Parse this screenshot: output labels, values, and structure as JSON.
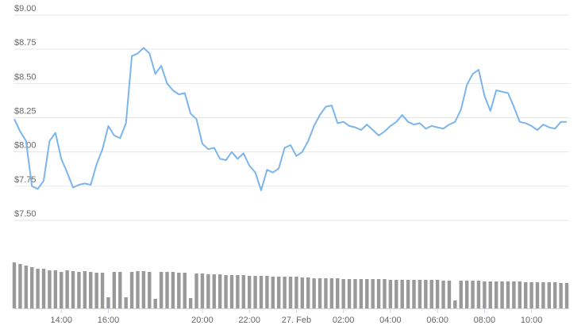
{
  "chart_data": {
    "type": "line",
    "x": [
      12,
      12.25,
      12.5,
      12.75,
      13,
      13.25,
      13.5,
      13.75,
      14,
      14.25,
      14.5,
      14.75,
      15,
      15.25,
      15.5,
      15.75,
      16,
      16.25,
      16.5,
      16.75,
      17,
      17.25,
      17.5,
      17.75,
      18,
      18.25,
      18.5,
      18.75,
      19,
      19.25,
      19.5,
      19.75,
      20,
      20.25,
      20.5,
      20.75,
      21,
      21.25,
      21.5,
      21.75,
      22,
      22.25,
      22.5,
      22.75,
      23,
      23.25,
      23.5,
      23.75,
      24,
      24.25,
      24.5,
      24.75,
      25,
      25.25,
      25.5,
      25.75,
      26,
      26.25,
      26.5,
      26.75,
      27,
      27.25,
      27.5,
      27.75,
      28,
      28.25,
      28.5,
      28.75,
      29,
      29.25,
      29.5,
      29.75,
      30,
      30.25,
      30.5,
      30.75,
      31,
      31.25,
      31.5,
      31.75,
      32,
      32.25,
      32.5,
      32.75,
      33,
      33.25,
      33.5,
      33.75,
      34,
      34.25,
      34.5,
      34.75,
      35,
      35.25,
      35.5
    ],
    "series": [
      {
        "color": "#7cb5ec",
        "values": [
          8.24,
          8.15,
          8.08,
          7.75,
          7.73,
          7.79,
          8.08,
          8.14,
          7.95,
          7.85,
          7.74,
          7.76,
          7.77,
          7.76,
          7.91,
          8.02,
          8.19,
          8.12,
          8.1,
          8.21,
          8.7,
          8.72,
          8.76,
          8.72,
          8.57,
          8.63,
          8.5,
          8.45,
          8.42,
          8.43,
          8.28,
          8.24,
          8.06,
          8.02,
          8.03,
          7.95,
          7.94,
          8.0,
          7.95,
          7.99,
          7.9,
          7.85,
          7.72,
          7.87,
          7.85,
          7.88,
          8.03,
          8.05,
          7.97,
          8.0,
          8.08,
          8.19,
          8.27,
          8.33,
          8.34,
          8.21,
          8.22,
          8.19,
          8.18,
          8.16,
          8.2,
          8.16,
          8.12,
          8.15,
          8.19,
          8.22,
          8.27,
          8.22,
          8.2,
          8.21,
          8.17,
          8.19,
          8.18,
          8.17,
          8.2,
          8.22,
          8.31,
          8.49,
          8.57,
          8.6,
          8.41,
          8.3,
          8.45,
          8.44,
          8.43,
          8.33,
          8.22,
          8.21,
          8.19,
          8.16,
          8.2,
          8.18,
          8.17,
          8.22,
          8.22
        ]
      },
      {
        "type": "bar",
        "axis": "y2",
        "color": "#999999",
        "values": [
          58,
          56,
          54,
          52,
          50,
          50,
          48,
          48,
          46,
          48,
          47,
          46,
          47,
          46,
          45,
          45,
          14,
          46,
          46,
          14,
          46,
          47,
          47,
          46,
          12,
          46,
          46,
          46,
          45,
          45,
          13,
          44,
          44,
          43,
          43,
          43,
          42,
          42,
          42,
          42,
          41,
          41,
          41,
          41,
          40,
          40,
          40,
          40,
          40,
          39,
          39,
          38,
          38,
          38,
          38,
          38,
          37,
          37,
          37,
          37,
          37,
          37,
          37,
          37,
          36,
          36,
          36,
          36,
          36,
          36,
          36,
          36,
          36,
          35,
          35,
          10,
          35,
          35,
          35,
          35,
          34,
          34,
          34,
          34,
          34,
          34,
          34,
          33,
          33,
          33,
          33,
          33,
          33,
          32,
          32
        ]
      }
    ],
    "xlim": [
      12,
      35.6
    ],
    "xticks": [
      {
        "value": 14,
        "label": "14:00"
      },
      {
        "value": 16,
        "label": "16:00"
      },
      {
        "value": 20,
        "label": "20:00"
      },
      {
        "value": 22,
        "label": "22:00"
      },
      {
        "value": 24,
        "label": "27. Feb"
      },
      {
        "value": 26,
        "label": "02:00"
      },
      {
        "value": 28,
        "label": "04:00"
      },
      {
        "value": 30,
        "label": "06:00"
      },
      {
        "value": 32,
        "label": "08:00"
      },
      {
        "value": 34,
        "label": "10:00"
      }
    ],
    "ylim": [
      7.5,
      9
    ],
    "yticks": [
      {
        "value": 9,
        "label": "$9.00"
      },
      {
        "value": 8.75,
        "label": "$8.75"
      },
      {
        "value": 8.5,
        "label": "$8.50"
      },
      {
        "value": 8.25,
        "label": "$8.25"
      },
      {
        "value": 8,
        "label": "$8.00"
      },
      {
        "value": 7.75,
        "label": "$7.75"
      },
      {
        "value": 7.5,
        "label": "$7.50"
      }
    ],
    "y2lim": [
      0,
      60
    ],
    "grid": true
  }
}
